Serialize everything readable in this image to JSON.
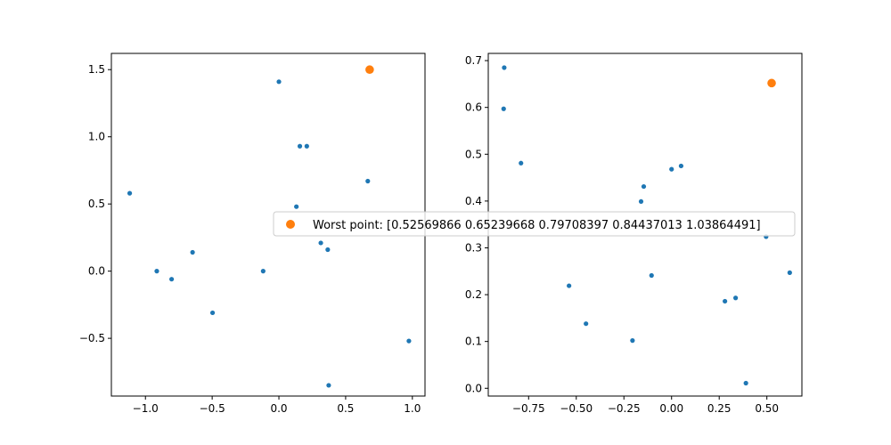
{
  "chart_data": [
    {
      "type": "scatter",
      "xlim": [
        -1.2553,
        1.0947
      ],
      "ylim": [
        -0.9298,
        1.6208
      ],
      "xticks": [
        -1.0,
        -0.5,
        0.0,
        0.5,
        1.0
      ],
      "xtick_labels": [
        "−1.0",
        "−0.5",
        "0.0",
        "0.5",
        "1.0"
      ],
      "yticks": [
        -0.5,
        0.0,
        0.5,
        1.0,
        1.5
      ],
      "ytick_labels": [
        "−0.5",
        "0.0",
        "0.5",
        "1.0",
        "1.5"
      ],
      "grid": false,
      "series": [
        {
          "color": "#1f77b4",
          "marker_size": "small",
          "points": [
            [
              0.0,
              1.41
            ],
            [
              0.157,
              0.93
            ],
            [
              0.209,
              0.93
            ],
            [
              -1.118,
              0.58
            ],
            [
              0.666,
              0.67
            ],
            [
              0.131,
              0.48
            ],
            [
              -0.647,
              0.14
            ],
            [
              0.314,
              0.21
            ],
            [
              0.366,
              0.16
            ],
            [
              -0.915,
              0.0
            ],
            [
              -0.804,
              -0.06
            ],
            [
              -0.118,
              0.0
            ],
            [
              -0.497,
              -0.31
            ],
            [
              0.974,
              -0.52
            ],
            [
              0.373,
              -0.85
            ]
          ]
        },
        {
          "color": "#ff7f0e",
          "marker_size": "large",
          "points": [
            [
              0.68,
              1.5
            ]
          ]
        }
      ]
    },
    {
      "type": "scatter",
      "xlim": [
        -0.9617,
        0.6838
      ],
      "ylim": [
        -0.0166,
        0.7154
      ],
      "xticks": [
        -0.75,
        -0.5,
        -0.25,
        0.0,
        0.25,
        0.5
      ],
      "xtick_labels": [
        "−0.75",
        "−0.50",
        "−0.25",
        "0.00",
        "0.25",
        "0.50"
      ],
      "yticks": [
        0.0,
        0.1,
        0.2,
        0.3,
        0.4,
        0.5,
        0.6,
        0.7
      ],
      "ytick_labels": [
        "0.0",
        "0.1",
        "0.2",
        "0.3",
        "0.4",
        "0.5",
        "0.6",
        "0.7"
      ],
      "grid": false,
      "series": [
        {
          "color": "#1f77b4",
          "marker_size": "small",
          "points": [
            [
              -0.878,
              0.685
            ],
            [
              -0.881,
              0.597
            ],
            [
              -0.79,
              0.481
            ],
            [
              -0.146,
              0.431
            ],
            [
              -0.16,
              0.399
            ],
            [
              0.0,
              0.468
            ],
            [
              0.05,
              0.475
            ],
            [
              0.496,
              0.324
            ],
            [
              0.62,
              0.247
            ],
            [
              -0.538,
              0.219
            ],
            [
              -0.105,
              0.241
            ],
            [
              -0.449,
              0.138
            ],
            [
              0.28,
              0.186
            ],
            [
              0.336,
              0.193
            ],
            [
              -0.205,
              0.102
            ],
            [
              0.39,
              0.011
            ]
          ]
        },
        {
          "color": "#ff7f0e",
          "marker_size": "large",
          "points": [
            [
              0.525,
              0.652
            ]
          ]
        }
      ]
    }
  ],
  "legend": {
    "placement": "center",
    "marker_color": "#ff7f0e",
    "label": "Worst point: [0.52569866 0.65239668 0.79708397 0.84437013 1.03864491]"
  }
}
